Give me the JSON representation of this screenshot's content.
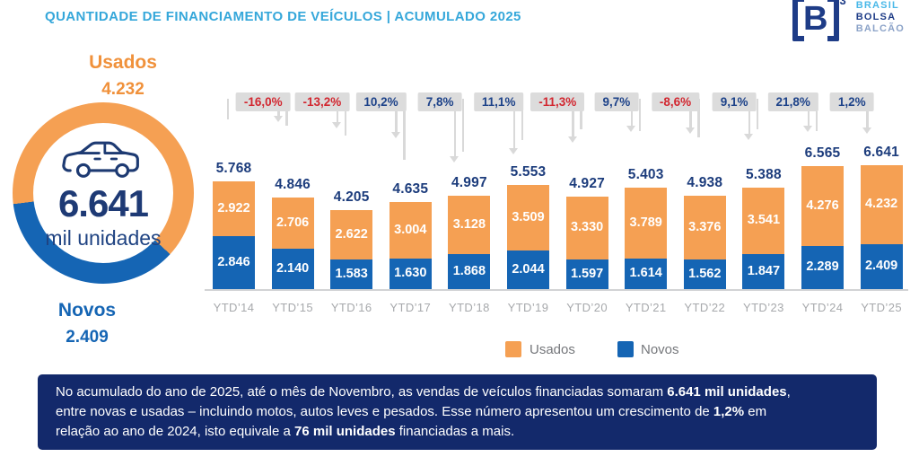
{
  "title": "QUANTIDADE DE FINANCIAMENTO DE VEÍCULOS | ACUMULADO 2025",
  "logo": {
    "mark": "B",
    "sup": "3",
    "lines": [
      "BRASIL",
      "BOLSA",
      "BALCÃO"
    ]
  },
  "left_panel": {
    "usados_label": "Usados",
    "usados_value": "4.232",
    "novos_label": "Novos",
    "novos_value": "2.409",
    "center_value": "6.641",
    "center_caption": "mil unidades",
    "car_icon": "car-outline-icon"
  },
  "colors": {
    "accent_cyan": "#35A7DA",
    "orange": "#F5A053",
    "blue": "#1565B4",
    "navy_text": "#1C3C7C",
    "pct_positive_blue": "#1D4289",
    "pct_negative_red": "#D22730",
    "pct_box_gray": "#DCDCDC",
    "connector_gray": "#D9D9D9",
    "axis_label_gray": "#A7A9AC",
    "footer_bg": "#13296B",
    "logo_navy": "#1E3C87",
    "logo_lightblue": "#49B8E8",
    "logo_steel": "#8CA3C8"
  },
  "chart_data": [
    {
      "type": "bar",
      "subtype": "stacked",
      "unit": "mil unidades",
      "categories": [
        "YTD’14",
        "YTD’15",
        "YTD’16",
        "YTD’17",
        "YTD’18",
        "YTD’19",
        "YTD’20",
        "YTD’21",
        "YTD’22",
        "YTD’23",
        "YTD’24",
        "YTD’25"
      ],
      "series": [
        {
          "name": "Usados",
          "color": "#F5A053",
          "values": [
            2922,
            2706,
            2622,
            3004,
            3128,
            3509,
            3330,
            3789,
            3376,
            3541,
            4276,
            4232
          ]
        },
        {
          "name": "Novos",
          "color": "#1565B4",
          "values": [
            2846,
            2140,
            1583,
            1630,
            1868,
            2044,
            1597,
            1614,
            1562,
            1847,
            2289,
            2409
          ]
        }
      ],
      "totals": [
        5768,
        4846,
        4205,
        4635,
        4997,
        5553,
        4927,
        5403,
        4938,
        5388,
        6565,
        6641
      ],
      "pct_changes": [
        "-16,0%",
        "-13,2%",
        "10,2%",
        "7,8%",
        "11,1%",
        "-11,3%",
        "9,7%",
        "-8,6%",
        "9,1%",
        "21,8%",
        "1,2%"
      ],
      "legend_position": "bottom",
      "grid": false,
      "value_label_format": "#.###"
    },
    {
      "type": "pie",
      "subtype": "donut",
      "labels": [
        "Usados",
        "Novos"
      ],
      "values": [
        4232,
        2409
      ],
      "total": 6641,
      "center_label": "6.641",
      "center_caption": "mil unidades"
    }
  ],
  "footer": {
    "segments": [
      {
        "text": "No acumulado do ano de 2025, até o mês de Novembro, as vendas de veículos financiadas somaram ",
        "bold": false
      },
      {
        "text": "6.641 mil unidades",
        "bold": true
      },
      {
        "text": ",\n",
        "bold": false
      },
      {
        "text": "entre novas e usadas – incluindo motos, autos leves e pesados. Esse número apresentou um crescimento de ",
        "bold": false
      },
      {
        "text": "1,2%",
        "bold": true
      },
      {
        "text": " em\nrelação ao ano de 2024, isto equivale a ",
        "bold": false
      },
      {
        "text": "76 mil unidades",
        "bold": true
      },
      {
        "text": " financiadas a mais.",
        "bold": false
      }
    ]
  }
}
